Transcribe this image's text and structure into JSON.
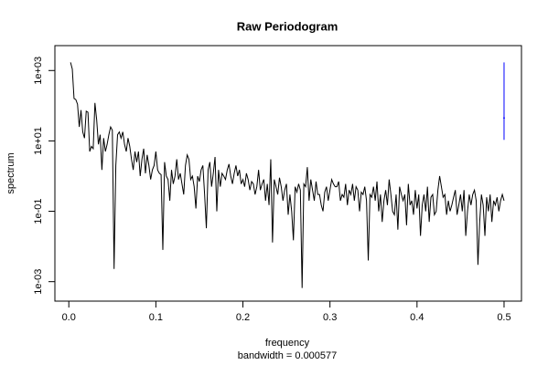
{
  "chart_data": {
    "type": "line",
    "title": "Raw Periodogram",
    "x_label": "frequency",
    "subtitle": "bandwidth = 0.000577",
    "y_label": "spectrum",
    "color": "#000000",
    "y_log": true,
    "xlim": [
      -0.016,
      0.52
    ],
    "ylim": [
      0.00028,
      5100
    ],
    "xticks": [
      {
        "value": 0,
        "label": "0.0"
      },
      0.1,
      0.2,
      0.3,
      0.4,
      0.5
    ],
    "yticks": [
      {
        "value": 0.001,
        "label": "1e-03"
      },
      {
        "value": 0.1,
        "label": "1e-01"
      },
      {
        "value": 10,
        "label": "1e+01"
      },
      {
        "value": 1000,
        "label": "1e+03"
      }
    ],
    "ci": {
      "x": 0.5,
      "lower": 10.7,
      "center": 45,
      "upper": 1700,
      "color": "#0000ff"
    },
    "x": [
      0.002,
      0.004,
      0.006,
      0.008,
      0.01,
      0.012,
      0.014,
      0.016,
      0.018,
      0.02,
      0.022,
      0.024,
      0.026,
      0.028,
      0.03,
      0.032,
      0.034,
      0.036,
      0.038,
      0.04,
      0.042,
      0.044,
      0.046,
      0.048,
      0.05,
      0.052,
      0.054,
      0.056,
      0.058,
      0.06,
      0.062,
      0.064,
      0.066,
      0.068,
      0.07,
      0.072,
      0.074,
      0.076,
      0.078,
      0.08,
      0.082,
      0.084,
      0.086,
      0.088,
      0.09,
      0.092,
      0.094,
      0.096,
      0.098,
      0.1,
      0.102,
      0.104,
      0.106,
      0.108,
      0.11,
      0.112,
      0.114,
      0.116,
      0.118,
      0.12,
      0.122,
      0.124,
      0.126,
      0.128,
      0.13,
      0.132,
      0.134,
      0.136,
      0.138,
      0.14,
      0.142,
      0.144,
      0.146,
      0.148,
      0.15,
      0.152,
      0.154,
      0.156,
      0.158,
      0.16,
      0.162,
      0.164,
      0.166,
      0.168,
      0.17,
      0.172,
      0.174,
      0.176,
      0.178,
      0.18,
      0.182,
      0.184,
      0.186,
      0.188,
      0.19,
      0.192,
      0.194,
      0.196,
      0.198,
      0.2,
      0.202,
      0.204,
      0.206,
      0.208,
      0.21,
      0.212,
      0.214,
      0.216,
      0.218,
      0.22,
      0.222,
      0.224,
      0.226,
      0.228,
      0.23,
      0.232,
      0.234,
      0.236,
      0.238,
      0.24,
      0.242,
      0.244,
      0.246,
      0.248,
      0.25,
      0.252,
      0.254,
      0.256,
      0.258,
      0.26,
      0.262,
      0.264,
      0.266,
      0.268,
      0.27,
      0.272,
      0.274,
      0.276,
      0.278,
      0.28,
      0.282,
      0.284,
      0.286,
      0.288,
      0.29,
      0.292,
      0.294,
      0.296,
      0.298,
      0.3,
      0.302,
      0.304,
      0.306,
      0.308,
      0.31,
      0.312,
      0.314,
      0.316,
      0.318,
      0.32,
      0.322,
      0.324,
      0.326,
      0.328,
      0.33,
      0.332,
      0.334,
      0.336,
      0.338,
      0.34,
      0.342,
      0.344,
      0.346,
      0.348,
      0.35,
      0.352,
      0.354,
      0.356,
      0.358,
      0.36,
      0.362,
      0.364,
      0.366,
      0.368,
      0.37,
      0.372,
      0.374,
      0.376,
      0.378,
      0.38,
      0.382,
      0.384,
      0.386,
      0.388,
      0.39,
      0.392,
      0.394,
      0.396,
      0.398,
      0.4,
      0.402,
      0.404,
      0.406,
      0.408,
      0.41,
      0.412,
      0.414,
      0.416,
      0.418,
      0.42,
      0.422,
      0.424,
      0.426,
      0.428,
      0.43,
      0.432,
      0.434,
      0.436,
      0.438,
      0.44,
      0.442,
      0.444,
      0.446,
      0.448,
      0.45,
      0.452,
      0.454,
      0.456,
      0.458,
      0.46,
      0.462,
      0.464,
      0.466,
      0.468,
      0.47,
      0.472,
      0.474,
      0.476,
      0.478,
      0.48,
      0.482,
      0.484,
      0.486,
      0.488,
      0.49,
      0.492,
      0.494,
      0.496,
      0.498,
      0.5
    ],
    "values": [
      1700,
      1100,
      160,
      150,
      110,
      25,
      75,
      18,
      12,
      70,
      65,
      5,
      7,
      6,
      120,
      40,
      8,
      15,
      1.5,
      12,
      5,
      8,
      15,
      25,
      20,
      0.0023,
      2,
      15,
      18,
      12,
      18,
      8,
      5,
      12,
      7,
      3,
      1.5,
      5,
      2.5,
      5,
      1,
      3,
      6,
      1.2,
      4,
      2,
      0.8,
      1.5,
      2,
      5,
      1.5,
      1.2,
      1.1,
      0.008,
      2.5,
      1,
      0.8,
      0.2,
      1.5,
      0.6,
      1,
      3,
      0.8,
      1.2,
      0.6,
      0.3,
      2,
      4,
      3,
      0.8,
      1,
      0.5,
      0.12,
      1,
      0.7,
      1.5,
      2,
      0.3,
      0.033,
      1.5,
      2.5,
      0.5,
      1.2,
      3.5,
      0.1,
      1.5,
      0.5,
      1.2,
      1,
      0.8,
      1.5,
      2.2,
      1,
      0.6,
      1.2,
      2,
      1,
      1.5,
      0.6,
      0.8,
      0.5,
      1.2,
      0.8,
      0.4,
      0.7,
      0.6,
      0.3,
      0.5,
      1.5,
      0.4,
      0.6,
      0.8,
      0.2,
      0.6,
      0.15,
      3,
      0.013,
      0.8,
      0.5,
      0.3,
      0.9,
      0.5,
      0.2,
      0.4,
      0.6,
      0.08,
      0.3,
      0.1,
      0.015,
      0.5,
      0.35,
      0.6,
      0.4,
      0.00066,
      0.6,
      0.5,
      1.8,
      0.2,
      0.8,
      0.4,
      0.2,
      0.7,
      0.3,
      0.3,
      0.15,
      0.1,
      0.35,
      0.5,
      0.2,
      0.4,
      0.8,
      0.6,
      0.5,
      0.5,
      0.7,
      0.2,
      0.3,
      0.25,
      0.6,
      0.15,
      0.4,
      0.3,
      0.6,
      0.2,
      0.5,
      0.4,
      0.1,
      0.35,
      0.3,
      0.5,
      0.2,
      0.004,
      0.3,
      0.25,
      0.5,
      0.2,
      0.7,
      0.1,
      0.3,
      0.05,
      0.2,
      0.4,
      0.15,
      0.8,
      0.3,
      0.1,
      0.08,
      0.3,
      0.03,
      0.5,
      0.3,
      0.2,
      0.3,
      0.04,
      0.6,
      0.15,
      0.2,
      0.08,
      0.4,
      0.12,
      0.3,
      0.02,
      0.15,
      0.3,
      0.1,
      0.5,
      0.05,
      0.25,
      0.3,
      0.08,
      0.1,
      0.4,
      1,
      0.5,
      0.25,
      0.3,
      0.08,
      0.2,
      0.1,
      0.15,
      0.25,
      0.4,
      0.08,
      0.15,
      0.3,
      0.1,
      0.4,
      0.02,
      0.1,
      0.3,
      0.15,
      0.3,
      0.4,
      0.2,
      0.003,
      0.05,
      0.3,
      0.15,
      0.02,
      0.25,
      0.1,
      0.3,
      0.05,
      0.2,
      0.15,
      0.25,
      0.1,
      0.2,
      0.3,
      0.2
    ]
  }
}
